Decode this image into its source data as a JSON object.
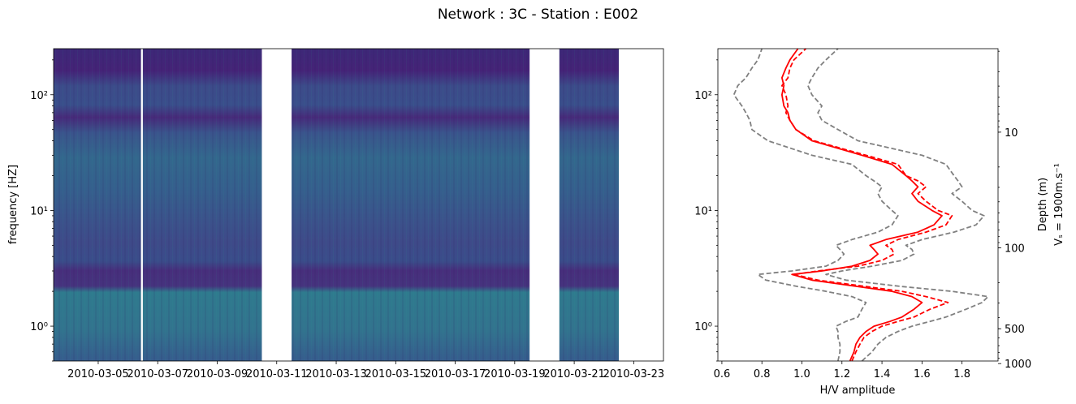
{
  "title": "Network : 3C - Station : E002",
  "chart_data": [
    {
      "type": "heatmap",
      "name": "spectrogram",
      "ylabel": "frequency [HZ]",
      "yscale": "log",
      "ylim": [
        0.5,
        250
      ],
      "y_ticks": [
        {
          "value": 1,
          "label": "10⁰"
        },
        {
          "value": 10,
          "label": "10¹"
        },
        {
          "value": 100,
          "label": "10²"
        }
      ],
      "x_range": [
        "2010-03-03T12:00",
        "2010-03-24T00:00"
      ],
      "x_ticks": [
        "2010-03-05",
        "2010-03-07",
        "2010-03-09",
        "2010-03-11",
        "2010-03-13",
        "2010-03-15",
        "2010-03-17",
        "2010-03-19",
        "2010-03-21",
        "2010-03-23"
      ],
      "data_segments": [
        {
          "start": "2010-03-03T12:00",
          "end": "2010-03-06T10:30"
        },
        {
          "start": "2010-03-06T12:00",
          "end": "2010-03-10T12:00"
        },
        {
          "start": "2010-03-11T12:00",
          "end": "2010-03-19T12:00"
        },
        {
          "start": "2010-03-20T12:00",
          "end": "2010-03-22T12:00"
        }
      ],
      "colormap": "viridis",
      "dark_bands_hz": [
        [
          2.4,
          3.3
        ],
        [
          40,
          60
        ],
        [
          130,
          250
        ]
      ],
      "bright_band_hz": [
        0.6,
        2.2
      ]
    },
    {
      "type": "line",
      "name": "hv-curve",
      "xlabel": "H/V amplitude",
      "xlim": [
        0.58,
        1.98
      ],
      "x_ticks": [
        "0.6",
        "0.8",
        "1.0",
        "1.2",
        "1.4",
        "1.6",
        "1.8"
      ],
      "yscale": "log",
      "ylim": [
        0.5,
        250
      ],
      "y_ticks": [
        {
          "value": 1,
          "label": "10⁰"
        },
        {
          "value": 10,
          "label": "10¹"
        },
        {
          "value": 100,
          "label": "10²"
        }
      ],
      "right_axis": {
        "label_line1": "Depth (m)",
        "label_line2": "Vₛ = 1900m.s⁻¹",
        "velocity": 1900,
        "ticks": [
          "10",
          "100",
          "500",
          "1000"
        ]
      },
      "frequency": [
        0.5,
        0.6,
        0.7,
        0.8,
        0.9,
        1.0,
        1.1,
        1.2,
        1.4,
        1.6,
        1.8,
        2.0,
        2.2,
        2.5,
        2.8,
        3.0,
        3.3,
        3.7,
        4.2,
        4.6,
        5.0,
        5.6,
        6.5,
        7.5,
        9.0,
        10.0,
        12.0,
        14.0,
        16.0,
        18.0,
        20.0,
        25.0,
        30.0,
        40.0,
        50.0,
        60.0,
        70.0,
        80.0,
        100.0,
        120.0,
        140.0,
        170.0,
        200.0,
        250.0
      ],
      "series": [
        {
          "role": "mean",
          "style": "solid",
          "color": "#ff0000",
          "values": [
            1.24,
            1.26,
            1.27,
            1.29,
            1.32,
            1.36,
            1.44,
            1.5,
            1.56,
            1.6,
            1.55,
            1.45,
            1.28,
            1.05,
            0.95,
            1.1,
            1.25,
            1.34,
            1.38,
            1.36,
            1.34,
            1.42,
            1.58,
            1.66,
            1.7,
            1.65,
            1.58,
            1.55,
            1.58,
            1.55,
            1.52,
            1.45,
            1.3,
            1.05,
            0.97,
            0.94,
            0.93,
            0.91,
            0.9,
            0.91,
            0.9,
            0.92,
            0.94,
            0.98
          ]
        },
        {
          "role": "mean-alt",
          "style": "dashed",
          "color": "#ff0000",
          "values": [
            1.25,
            1.27,
            1.29,
            1.31,
            1.35,
            1.4,
            1.48,
            1.56,
            1.64,
            1.73,
            1.62,
            1.5,
            1.32,
            1.08,
            0.96,
            1.08,
            1.28,
            1.4,
            1.46,
            1.45,
            1.42,
            1.48,
            1.62,
            1.72,
            1.75,
            1.68,
            1.62,
            1.58,
            1.62,
            1.58,
            1.52,
            1.48,
            1.32,
            1.06,
            0.97,
            0.94,
            0.92,
            0.93,
            0.92,
            0.9,
            0.93,
            0.94,
            0.96,
            1.02
          ]
        },
        {
          "role": "upper",
          "style": "dashed",
          "color": "#808080",
          "values": [
            1.3,
            1.35,
            1.38,
            1.42,
            1.48,
            1.55,
            1.64,
            1.72,
            1.82,
            1.9,
            1.93,
            1.75,
            1.5,
            1.22,
            1.12,
            1.2,
            1.35,
            1.5,
            1.56,
            1.55,
            1.52,
            1.6,
            1.76,
            1.87,
            1.91,
            1.85,
            1.8,
            1.75,
            1.8,
            1.78,
            1.76,
            1.72,
            1.6,
            1.28,
            1.18,
            1.1,
            1.08,
            1.1,
            1.05,
            1.03,
            1.05,
            1.08,
            1.12,
            1.18
          ]
        },
        {
          "role": "lower",
          "style": "dashed",
          "color": "#808080",
          "values": [
            1.18,
            1.19,
            1.19,
            1.18,
            1.18,
            1.17,
            1.22,
            1.28,
            1.3,
            1.32,
            1.25,
            1.12,
            0.98,
            0.82,
            0.78,
            0.95,
            1.12,
            1.18,
            1.21,
            1.19,
            1.17,
            1.25,
            1.38,
            1.45,
            1.48,
            1.45,
            1.4,
            1.38,
            1.4,
            1.36,
            1.32,
            1.25,
            1.05,
            0.83,
            0.75,
            0.74,
            0.72,
            0.7,
            0.66,
            0.68,
            0.72,
            0.75,
            0.78,
            0.8
          ]
        }
      ]
    }
  ]
}
